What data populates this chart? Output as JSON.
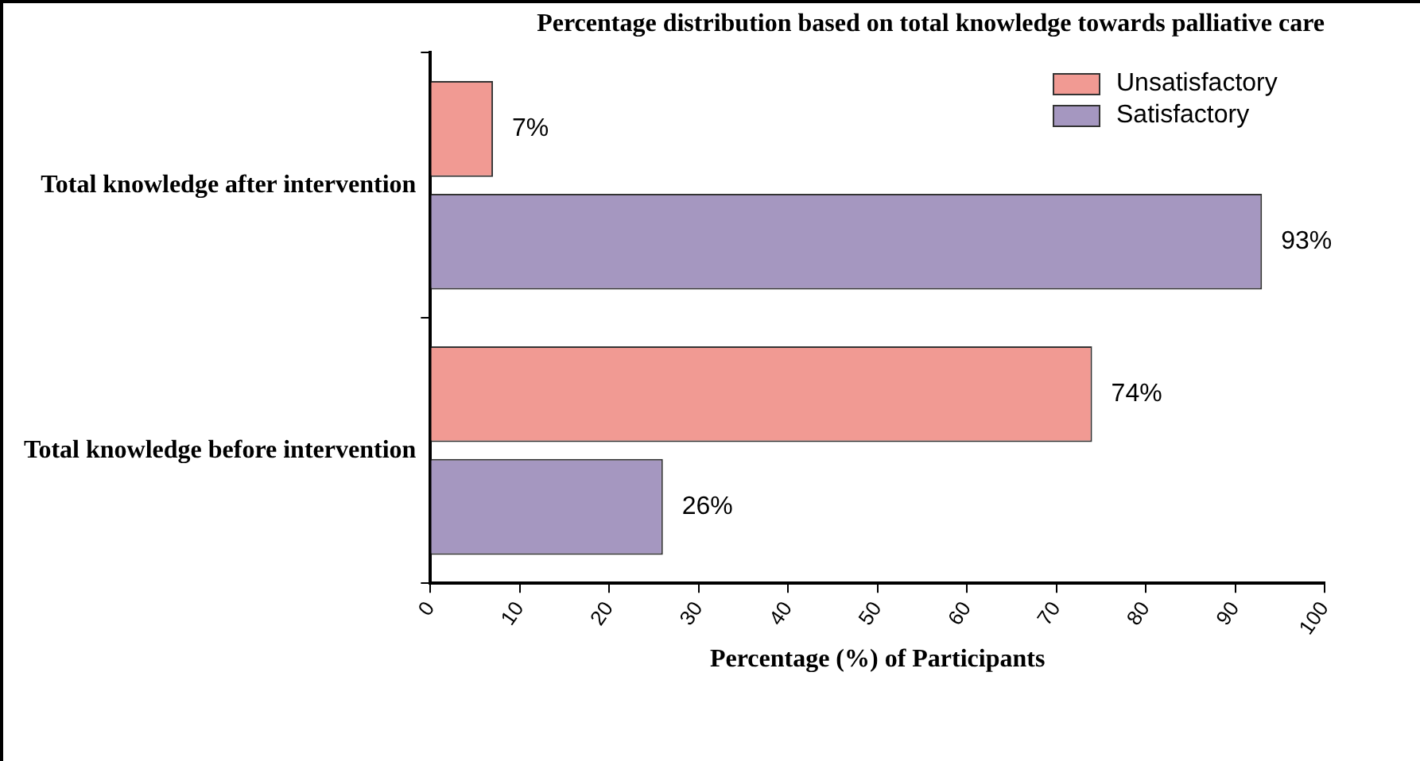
{
  "chart_data": {
    "type": "bar",
    "orientation": "horizontal",
    "title": "Percentage distribution based on total knowledge towards palliative care",
    "xlabel": "Percentage (%) of Participants",
    "categories": [
      "Total knowledge after intervention",
      "Total knowledge before intervention"
    ],
    "series": [
      {
        "name": "Unsatisfactory",
        "color": "#f19a93",
        "values": [
          7,
          74
        ],
        "value_labels": [
          "7%",
          "74%"
        ]
      },
      {
        "name": "Satisfactory",
        "color": "#a597c0",
        "values": [
          93,
          26
        ],
        "value_labels": [
          "93%",
          "26%"
        ]
      }
    ],
    "xlim": [
      0,
      100
    ],
    "xticks": [
      0,
      10,
      20,
      30,
      40,
      50,
      60,
      70,
      80,
      90,
      100
    ],
    "grid": false,
    "legend": "top right"
  }
}
